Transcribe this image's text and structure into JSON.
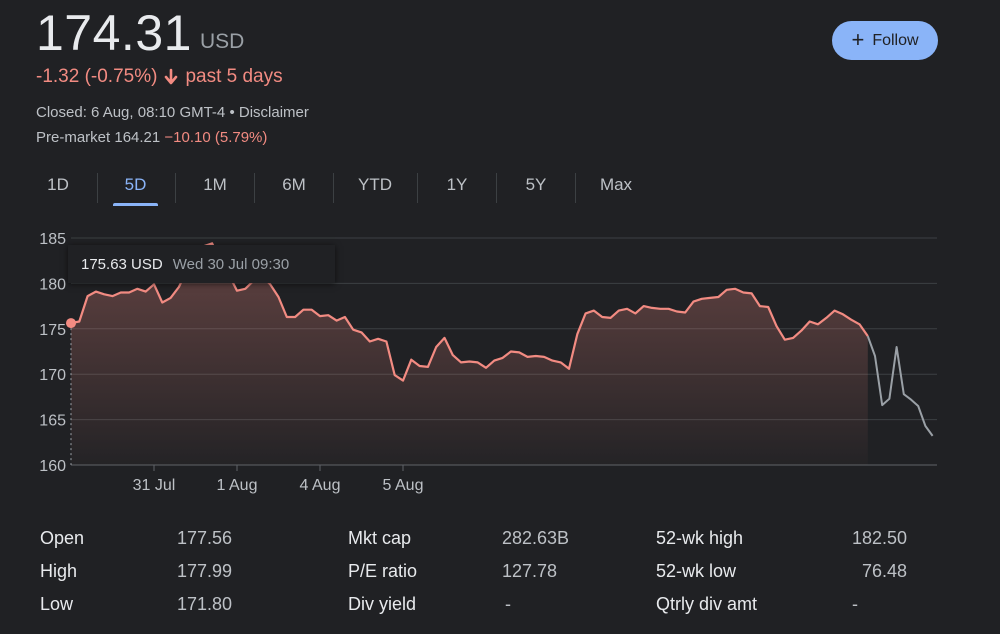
{
  "quote": {
    "price": "174.31",
    "currency": "USD",
    "change": "-1.32 (-0.75%)",
    "period": "past 5 days",
    "closed": "Closed: 6 Aug, 08:10 GMT-4 • Disclaimer",
    "premarket_label": "Pre-market 164.21",
    "premarket_change": "−10.10 (5.79%)"
  },
  "follow_label": "Follow",
  "tabs": [
    "1D",
    "5D",
    "1M",
    "6M",
    "YTD",
    "1Y",
    "5Y",
    "Max"
  ],
  "active_tab": "5D",
  "tooltip": {
    "value": "175.63 USD",
    "time": "Wed 30 Jul 09:30"
  },
  "colors": {
    "line": "#f28b82",
    "premarket": "#9aa0a6",
    "accent": "#8ab4f8",
    "background": "#202124"
  },
  "chart_data": {
    "type": "area",
    "ylim": [
      160,
      185
    ],
    "yticks": [
      160,
      165,
      170,
      175,
      180,
      185
    ],
    "xtick_labels": [
      "31 Jul",
      "1 Aug",
      "4 Aug",
      "5 Aug"
    ],
    "xtick_positions": [
      10,
      20,
      30,
      40
    ],
    "grid": true,
    "series": [
      {
        "values": [
          175.63,
          175.8,
          178.6,
          179.1,
          178.8,
          178.6,
          179.0,
          179.0,
          179.4,
          179.1,
          179.9,
          177.9,
          178.4,
          179.6,
          181.5,
          183.2,
          184.1,
          184.4,
          182.5,
          181.0,
          179.2,
          179.4,
          180.3,
          180.8,
          179.9,
          178.5,
          176.3,
          176.3,
          177.1,
          177.1,
          176.4,
          176.5,
          175.9,
          176.3,
          174.9,
          174.6,
          173.6,
          173.9,
          173.6,
          169.9,
          169.3,
          171.6,
          170.9,
          170.8,
          173.0,
          174.0,
          172.1,
          171.3,
          171.4,
          171.3,
          170.7,
          171.5,
          171.8,
          172.5,
          172.4,
          171.9,
          172.0,
          171.9,
          171.5,
          171.3,
          170.6,
          174.4,
          176.7,
          177.0,
          176.3,
          176.2,
          177.0,
          177.2,
          176.7,
          177.5,
          177.3,
          177.2,
          177.2,
          176.9,
          176.8,
          178.0,
          178.3,
          178.4,
          178.5,
          179.3,
          179.4,
          179.0,
          178.9,
          177.5,
          177.4,
          175.3,
          173.8,
          174.0,
          174.8,
          175.8,
          175.5,
          176.2,
          177.0,
          176.6,
          176.0,
          175.5,
          174.2
        ]
      },
      {
        "name": "Pre-market",
        "values": [
          174.2,
          172.0,
          166.6,
          167.3,
          173.0,
          167.8,
          167.2,
          166.5,
          164.3,
          163.2
        ]
      }
    ]
  },
  "stats": [
    [
      {
        "label": "Open",
        "value": "177.56"
      },
      {
        "label": "High",
        "value": "177.99"
      },
      {
        "label": "Low",
        "value": "171.80"
      }
    ],
    [
      {
        "label": "Mkt cap",
        "value": "282.63B"
      },
      {
        "label": "P/E ratio",
        "value": "127.78"
      },
      {
        "label": "Div yield",
        "value": "-"
      }
    ],
    [
      {
        "label": "52-wk high",
        "value": "182.50"
      },
      {
        "label": "52-wk low",
        "value": "76.48"
      },
      {
        "label": "Qtrly div amt",
        "value": "-"
      }
    ]
  ]
}
